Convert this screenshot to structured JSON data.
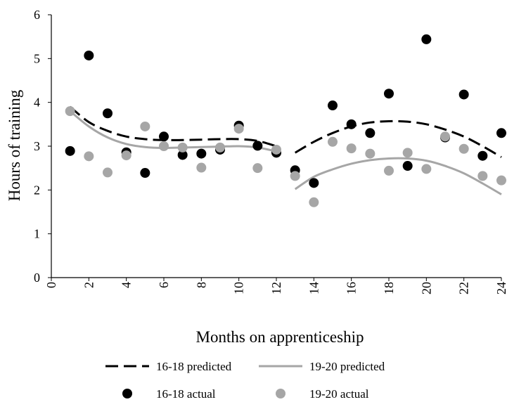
{
  "chart_data": {
    "type": "scatter",
    "xlabel": "Months on apprenticeship",
    "ylabel": "Hours of training",
    "xlim": [
      0,
      24
    ],
    "ylim": [
      0,
      6
    ],
    "xticks": [
      0,
      2,
      4,
      6,
      8,
      10,
      12,
      14,
      16,
      18,
      20,
      22,
      24
    ],
    "yticks": [
      0,
      1,
      2,
      3,
      4,
      5,
      6
    ],
    "grid": false,
    "legend_position": "bottom",
    "series": [
      {
        "name": "16-18 predicted",
        "kind": "line",
        "style": "dashed",
        "color": "#000000",
        "segments": [
          {
            "x": [
              1,
              2,
              3,
              4,
              5,
              6,
              7,
              8,
              9,
              10,
              11,
              12
            ],
            "y": [
              3.9,
              3.55,
              3.35,
              3.22,
              3.16,
              3.14,
              3.14,
              3.15,
              3.16,
              3.16,
              3.12,
              3.0
            ]
          },
          {
            "x": [
              13,
              14,
              15,
              16,
              17,
              18,
              19,
              20,
              21,
              22,
              23,
              24
            ],
            "y": [
              2.85,
              3.1,
              3.3,
              3.45,
              3.54,
              3.57,
              3.56,
              3.5,
              3.38,
              3.22,
              3.0,
              2.75
            ]
          }
        ]
      },
      {
        "name": "19-20 predicted",
        "kind": "line",
        "style": "solid",
        "color": "#a6a6a6",
        "segments": [
          {
            "x": [
              1,
              2,
              3,
              4,
              5,
              6,
              7,
              8,
              9,
              10,
              11,
              12
            ],
            "y": [
              3.8,
              3.45,
              3.2,
              3.05,
              2.98,
              2.96,
              2.97,
              2.98,
              2.99,
              3.0,
              2.97,
              2.88
            ]
          },
          {
            "x": [
              13,
              14,
              15,
              16,
              17,
              18,
              19,
              20,
              21,
              22,
              23,
              24
            ],
            "y": [
              2.02,
              2.3,
              2.47,
              2.6,
              2.68,
              2.72,
              2.72,
              2.67,
              2.55,
              2.38,
              2.15,
              1.9
            ]
          }
        ]
      },
      {
        "name": "16-18 actual",
        "kind": "scatter",
        "color": "#000000",
        "x": [
          1,
          2,
          3,
          4,
          5,
          6,
          7,
          8,
          9,
          10,
          11,
          12,
          13,
          14,
          15,
          16,
          17,
          18,
          19,
          20,
          21,
          22,
          23,
          24
        ],
        "y": [
          2.89,
          5.07,
          3.75,
          2.86,
          2.39,
          3.22,
          2.8,
          2.83,
          2.92,
          3.47,
          3.01,
          2.85,
          2.45,
          2.16,
          3.93,
          3.5,
          3.3,
          4.2,
          2.55,
          5.44,
          3.2,
          4.18,
          2.78,
          3.3
        ]
      },
      {
        "name": "19-20 actual",
        "kind": "scatter",
        "color": "#a6a6a6",
        "x": [
          1,
          2,
          3,
          4,
          5,
          6,
          7,
          8,
          9,
          10,
          11,
          12,
          13,
          14,
          15,
          16,
          17,
          18,
          19,
          20,
          21,
          22,
          23,
          24
        ],
        "y": [
          3.8,
          2.77,
          2.4,
          2.79,
          3.45,
          3.0,
          2.97,
          2.51,
          2.97,
          3.4,
          2.5,
          2.92,
          2.32,
          1.72,
          3.1,
          2.95,
          2.83,
          2.44,
          2.85,
          2.48,
          3.22,
          2.94,
          2.32,
          2.22
        ]
      }
    ]
  }
}
